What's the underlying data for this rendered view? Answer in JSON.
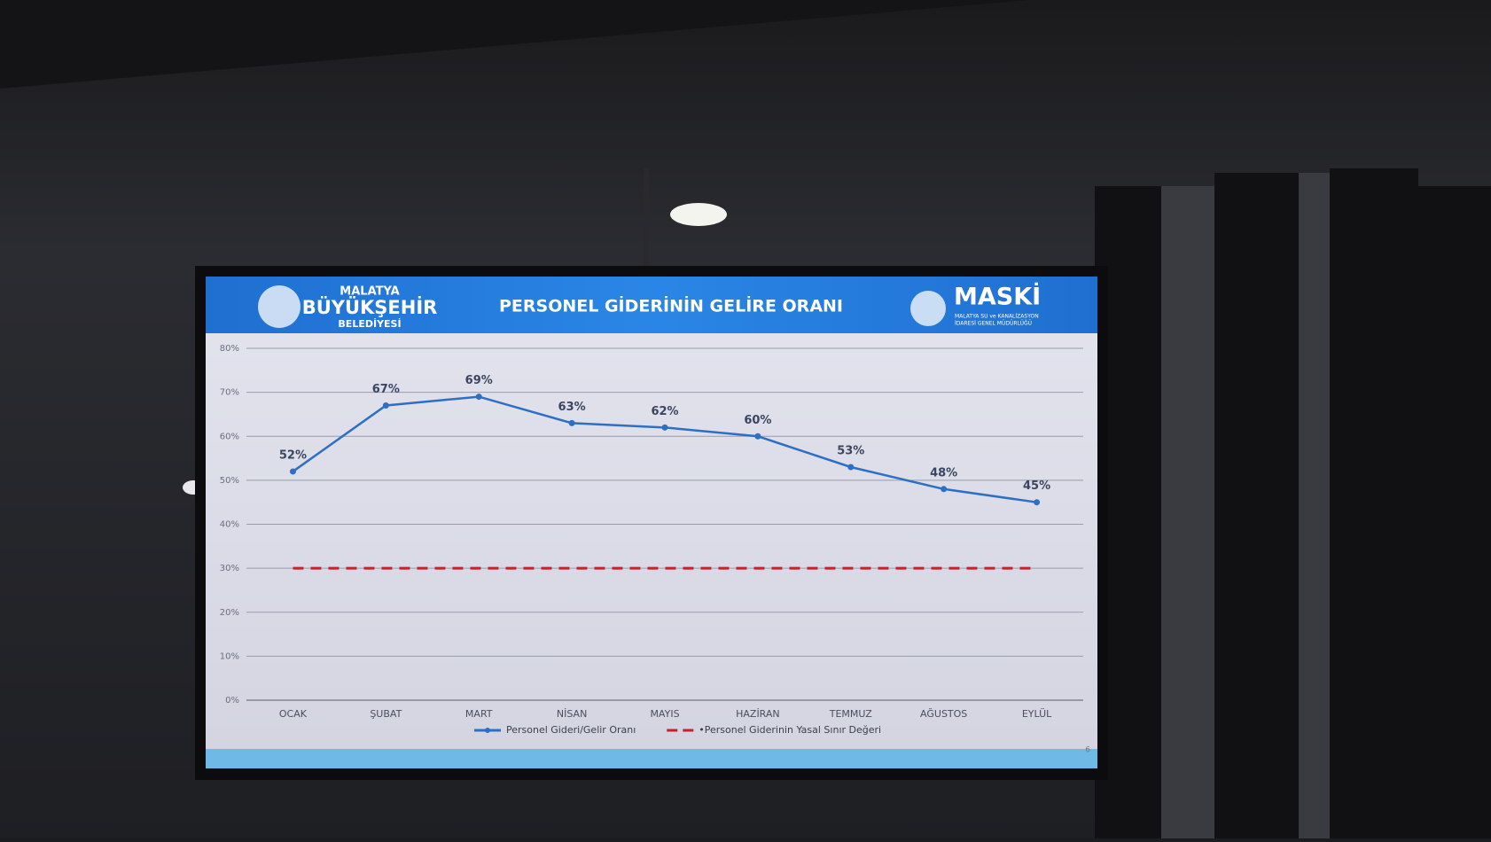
{
  "header": {
    "left_logo": [
      "MALATYA",
      "BÜYÜKŞEHİR",
      "BELEDİYESİ"
    ],
    "right_logo": "MASKİ",
    "right_logo_sub": [
      "MALATYA SU ve KANALİZASYON",
      "İDARESİ GENEL MÜDÜRLÜĞÜ"
    ]
  },
  "page_number": "6",
  "chart_data": {
    "type": "line",
    "title": "PERSONEL GİDERİNİN GELİRE ORANI",
    "categories": [
      "OCAK",
      "ŞUBAT",
      "MART",
      "NİSAN",
      "MAYIS",
      "HAZİRAN",
      "TEMMUZ",
      "AĞUSTOS",
      "EYLÜL"
    ],
    "series": [
      {
        "name": "Personel Gideri/Gelir Oranı",
        "color": "#2e6fc4",
        "values": [
          52,
          67,
          69,
          63,
          62,
          60,
          53,
          48,
          45
        ],
        "value_labels": [
          "52%",
          "67%",
          "69%",
          "63%",
          "62%",
          "60%",
          "53%",
          "48%",
          "45%"
        ]
      },
      {
        "name": "•Personel Giderinin Yasal Sınır Değeri",
        "color": "#c8202a",
        "dashed": true,
        "values": [
          30,
          30,
          30,
          30,
          30,
          30,
          30,
          30,
          30
        ]
      }
    ],
    "ylim": [
      0,
      80
    ],
    "yticks": [
      {
        "value": 0,
        "label": "0%"
      },
      {
        "value": 10,
        "label": "10%"
      },
      {
        "value": 20,
        "label": "20%"
      },
      {
        "value": 30,
        "label": "30%"
      },
      {
        "value": 40,
        "label": "40%"
      },
      {
        "value": 50,
        "label": "50%"
      },
      {
        "value": 60,
        "label": "60%"
      },
      {
        "value": 70,
        "label": "70%"
      },
      {
        "value": 80,
        "label": "80%"
      }
    ],
    "grid": true,
    "legend": "bottom"
  }
}
